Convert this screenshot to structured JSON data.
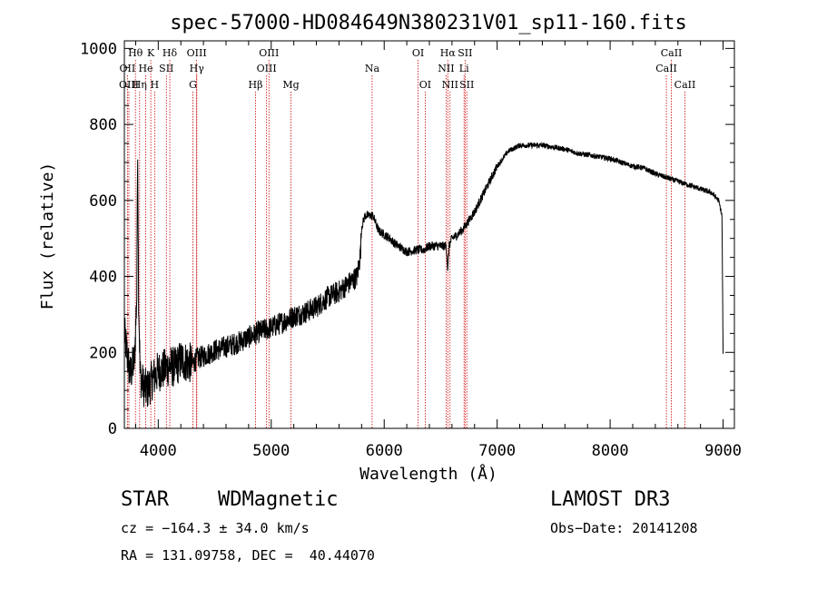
{
  "chart_data": {
    "type": "line",
    "title": "spec-57000-HD084649N380231V01_sp11-160.fits",
    "xlabel": "Wavelength (Å)",
    "ylabel": "Flux (relative)",
    "xlim": [
      3700,
      9100
    ],
    "ylim": [
      0,
      1020
    ],
    "x_ticks": [
      4000,
      5000,
      6000,
      7000,
      8000,
      9000
    ],
    "y_ticks": [
      0,
      200,
      400,
      600,
      800,
      1000
    ],
    "series": [
      {
        "name": "flux",
        "x": [
          3700,
          3750,
          3790,
          3810,
          3818,
          3826,
          3840,
          3870,
          3900,
          3950,
          4000,
          4050,
          4100,
          4150,
          4200,
          4250,
          4300,
          4350,
          4400,
          4500,
          4600,
          4700,
          4800,
          4900,
          5000,
          5100,
          5200,
          5300,
          5400,
          5500,
          5600,
          5700,
          5760,
          5790,
          5800,
          5830,
          5860,
          5900,
          5950,
          6000,
          6050,
          6100,
          6200,
          6300,
          6350,
          6400,
          6450,
          6500,
          6550,
          6563,
          6575,
          6600,
          6650,
          6700,
          6800,
          6900,
          7000,
          7100,
          7200,
          7300,
          7400,
          7500,
          7600,
          7700,
          7800,
          7900,
          8000,
          8100,
          8200,
          8300,
          8400,
          8500,
          8600,
          8700,
          8800,
          8900,
          8960,
          8990,
          9000
        ],
        "y": [
          250,
          140,
          180,
          350,
          760,
          350,
          140,
          110,
          100,
          130,
          150,
          155,
          165,
          160,
          180,
          175,
          170,
          185,
          190,
          205,
          215,
          225,
          240,
          255,
          265,
          280,
          295,
          305,
          320,
          345,
          360,
          385,
          400,
          460,
          530,
          560,
          560,
          560,
          520,
          510,
          500,
          485,
          465,
          470,
          470,
          480,
          480,
          480,
          480,
          415,
          480,
          500,
          510,
          525,
          570,
          630,
          690,
          730,
          745,
          745,
          745,
          740,
          735,
          725,
          720,
          715,
          710,
          700,
          690,
          685,
          670,
          660,
          650,
          640,
          630,
          620,
          600,
          560,
          190
        ]
      }
    ],
    "spectral_lines": [
      {
        "name": "Hθ",
        "x": 3798,
        "row": 1
      },
      {
        "name": "OII",
        "x": 3727,
        "row": 2
      },
      {
        "name": "OIII",
        "x": 3740,
        "row": 3
      },
      {
        "name": "Hη",
        "x": 3835,
        "row": 3
      },
      {
        "name": "He",
        "x": 3889,
        "row": 2
      },
      {
        "name": "K",
        "x": 3934,
        "row": 1
      },
      {
        "name": "H",
        "x": 3968,
        "row": 3
      },
      {
        "name": "SII",
        "x": 4072,
        "row": 2
      },
      {
        "name": "Hδ",
        "x": 4102,
        "row": 1
      },
      {
        "name": "OIII",
        "x": 4340,
        "row": 1
      },
      {
        "name": "Hγ",
        "x": 4341,
        "row": 2
      },
      {
        "name": "G",
        "x": 4307,
        "row": 3
      },
      {
        "name": "Hβ",
        "x": 4861,
        "row": 3
      },
      {
        "name": "OIII",
        "x": 4980,
        "row": 1
      },
      {
        "name": "OIII",
        "x": 4959,
        "row": 2
      },
      {
        "name": "Mg",
        "x": 5175,
        "row": 3
      },
      {
        "name": "Na",
        "x": 5893,
        "row": 2
      },
      {
        "name": "OI",
        "x": 6300,
        "row": 1
      },
      {
        "name": "OI",
        "x": 6363,
        "row": 3
      },
      {
        "name": "Hα",
        "x": 6563,
        "row": 1
      },
      {
        "name": "NII",
        "x": 6548,
        "row": 2
      },
      {
        "name": "NII",
        "x": 6583,
        "row": 3
      },
      {
        "name": "SII",
        "x": 6716,
        "row": 1
      },
      {
        "name": "Li",
        "x": 6707,
        "row": 2
      },
      {
        "name": "SII",
        "x": 6731,
        "row": 3
      },
      {
        "name": "CaII",
        "x": 8542,
        "row": 1
      },
      {
        "name": "CaII",
        "x": 8498,
        "row": 2
      },
      {
        "name": "CaII",
        "x": 8662,
        "row": 3
      }
    ]
  },
  "info": {
    "object_class": "STAR",
    "subclass": "WDMagnetic",
    "survey": "LAMOST DR3",
    "cz": "cz = −164.3 ± 34.0 km/s",
    "obs_date": "Obs−Date: 20141208",
    "coords": "RA = 131.09758, DEC =  40.44070"
  },
  "colors": {
    "line": "#000000",
    "marker": "#cc0000",
    "axis": "#000000"
  }
}
